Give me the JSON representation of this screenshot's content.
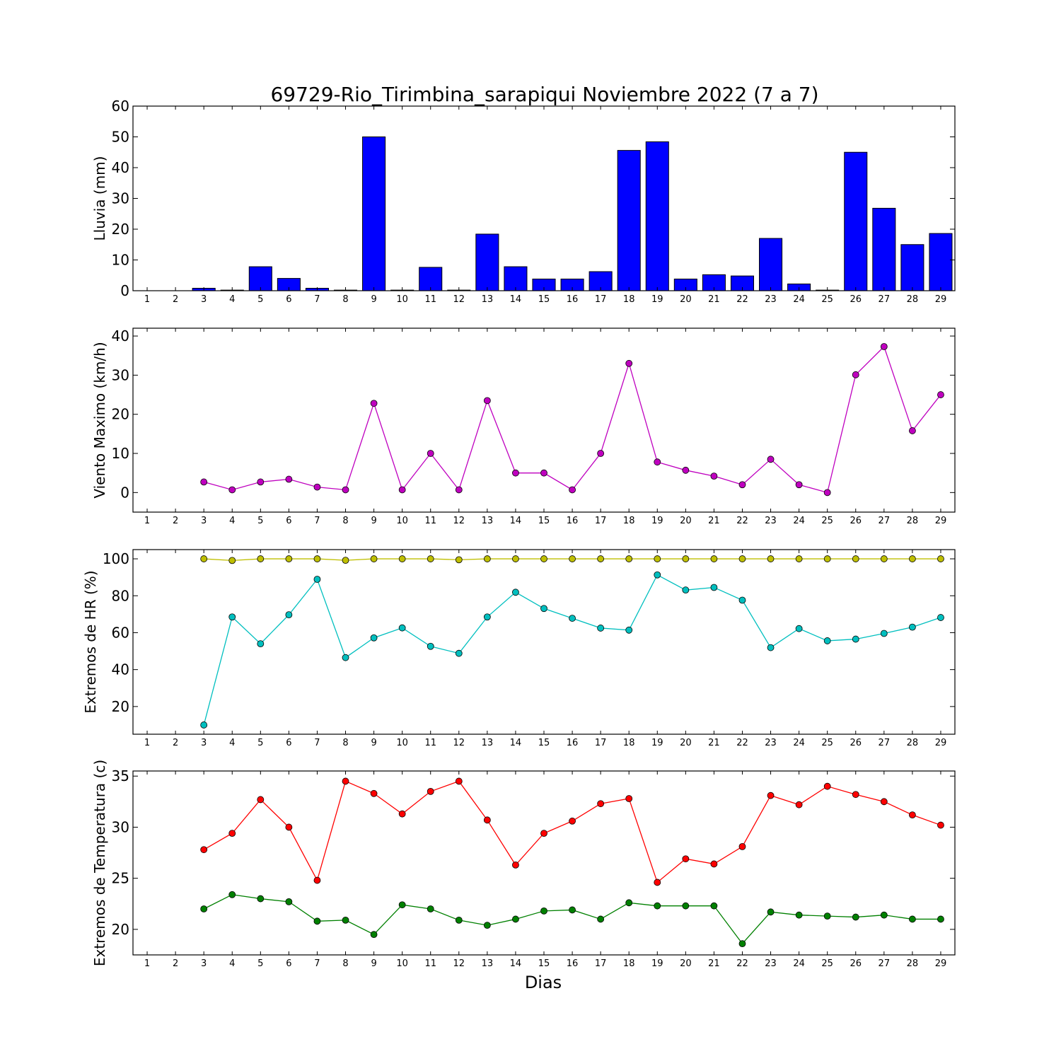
{
  "title": "69729-Rio_Tirimbina_sarapiqui Noviembre 2022  (7 a 7)",
  "xlabel": "Dias",
  "chart_data": [
    {
      "type": "bar",
      "ylabel": "Lluvia (mm)",
      "ylim": [
        0,
        60
      ],
      "yticks": [
        0,
        10,
        20,
        30,
        40,
        50,
        60
      ],
      "xlim": [
        0.5,
        29.5
      ],
      "x": [
        1,
        2,
        3,
        4,
        5,
        6,
        7,
        8,
        9,
        10,
        11,
        12,
        13,
        14,
        15,
        16,
        17,
        18,
        19,
        20,
        21,
        22,
        23,
        24,
        25,
        26,
        27,
        28,
        29
      ],
      "values": [
        0,
        0,
        0.8,
        0.2,
        7.8,
        4.0,
        0.8,
        0.2,
        50.0,
        0.2,
        7.6,
        0.2,
        18.4,
        7.8,
        3.8,
        3.8,
        6.2,
        45.6,
        48.4,
        3.8,
        5.2,
        4.8,
        17.0,
        2.2,
        0.2,
        45.0,
        26.8,
        15.0,
        18.6
      ],
      "color": "#0000ff"
    },
    {
      "type": "line",
      "ylabel": "Viento Maximo (km/h)",
      "ylim": [
        -5,
        42
      ],
      "yticks": [
        0,
        10,
        20,
        30,
        40
      ],
      "xlim": [
        0.5,
        29.5
      ],
      "x": [
        3,
        4,
        5,
        6,
        7,
        8,
        9,
        10,
        11,
        12,
        13,
        14,
        15,
        16,
        17,
        18,
        19,
        20,
        21,
        22,
        23,
        24,
        25,
        26,
        27,
        28,
        29
      ],
      "series": [
        {
          "values": [
            2.7,
            0.7,
            2.7,
            3.4,
            1.4,
            0.7,
            22.8,
            0.7,
            10.0,
            0.7,
            23.5,
            5.0,
            5.0,
            0.7,
            10.0,
            33.0,
            7.8,
            5.7,
            4.2,
            2.0,
            8.5,
            2.0,
            0.0,
            30.1,
            37.3,
            15.8,
            25.0
          ],
          "color": "#bf00bf"
        }
      ]
    },
    {
      "type": "line",
      "ylabel": "Extremos de HR (%)",
      "ylim": [
        5,
        105
      ],
      "yticks": [
        20,
        40,
        60,
        80,
        100
      ],
      "xlim": [
        0.5,
        29.5
      ],
      "x": [
        3,
        4,
        5,
        6,
        7,
        8,
        9,
        10,
        11,
        12,
        13,
        14,
        15,
        16,
        17,
        18,
        19,
        20,
        21,
        22,
        23,
        24,
        25,
        26,
        27,
        28,
        29
      ],
      "series": [
        {
          "values": [
            100,
            99.1,
            100,
            100,
            100,
            99.2,
            100,
            100,
            100,
            99.5,
            100,
            100,
            100,
            100,
            100,
            100,
            100,
            100,
            100,
            100,
            100,
            100,
            100,
            100,
            100,
            100,
            100
          ],
          "color": "#bfbf00"
        },
        {
          "values": [
            10.0,
            68.5,
            54.0,
            69.7,
            88.9,
            46.5,
            57.2,
            62.6,
            52.6,
            48.8,
            68.5,
            81.9,
            73.1,
            67.8,
            62.5,
            61.4,
            91.3,
            83.1,
            84.5,
            77.6,
            51.9,
            62.2,
            55.6,
            56.5,
            59.6,
            63.0,
            68.2
          ],
          "color": "#00bfbf"
        }
      ]
    },
    {
      "type": "line",
      "ylabel": "Extremos de Temperatura (c)",
      "ylim": [
        17.5,
        35.5
      ],
      "yticks": [
        20,
        25,
        30,
        35
      ],
      "xlim": [
        0.5,
        29.5
      ],
      "x": [
        3,
        4,
        5,
        6,
        7,
        8,
        9,
        10,
        11,
        12,
        13,
        14,
        15,
        16,
        17,
        18,
        19,
        20,
        21,
        22,
        23,
        24,
        25,
        26,
        27,
        28,
        29
      ],
      "series": [
        {
          "values": [
            27.8,
            29.4,
            32.7,
            30.0,
            24.8,
            34.5,
            33.3,
            31.3,
            33.5,
            34.5,
            30.7,
            26.3,
            29.4,
            30.6,
            32.3,
            32.8,
            24.6,
            26.9,
            26.4,
            28.1,
            33.1,
            32.2,
            34.0,
            33.2,
            32.5,
            31.2,
            30.2
          ],
          "color": "#ff0000"
        },
        {
          "values": [
            22.0,
            23.4,
            23.0,
            22.7,
            20.8,
            20.9,
            19.5,
            22.4,
            22.0,
            20.9,
            20.4,
            21.0,
            21.8,
            21.9,
            21.0,
            22.6,
            22.3,
            22.3,
            22.3,
            18.6,
            21.7,
            21.4,
            21.3,
            21.2,
            21.4,
            21.0,
            21.0
          ],
          "color": "#008000"
        }
      ]
    }
  ]
}
